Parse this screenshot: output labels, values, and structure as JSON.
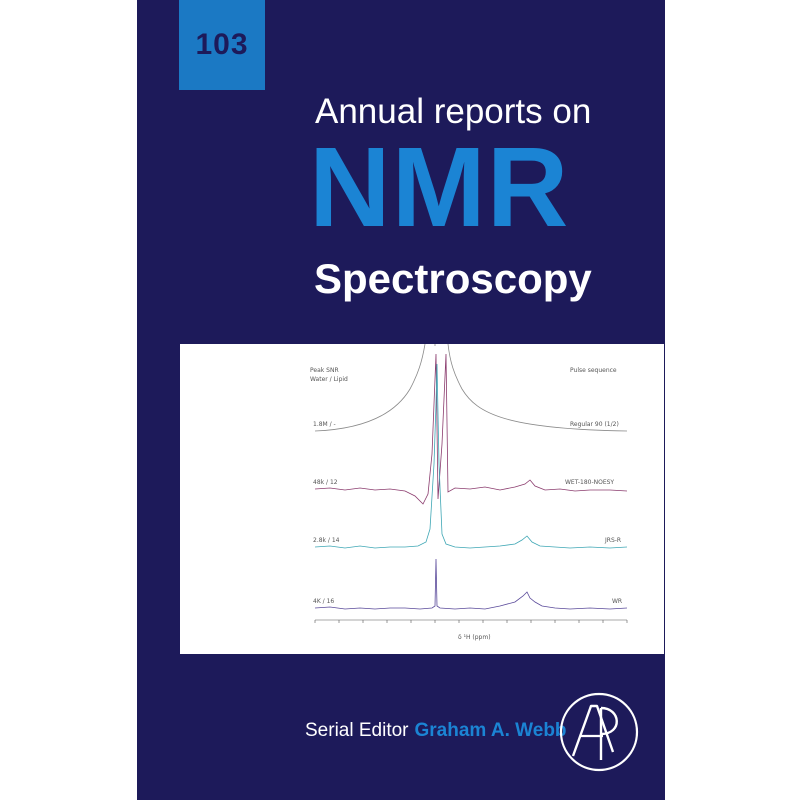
{
  "volume": "103",
  "title": {
    "line1": "Annual reports on",
    "line2": "NMR",
    "line3": "Spectroscopy"
  },
  "figure": {
    "header_left_1": "Peak SNR",
    "header_left_2": "Water / Lipid",
    "header_right": "Pulse sequence",
    "traces": [
      {
        "left": "1.8M / -",
        "right": "Regular 90 (1/2)",
        "color": "#8a8a8a"
      },
      {
        "left": "48k / 12",
        "right": "WET-180-NOESY",
        "color": "#8b3c6e"
      },
      {
        "left": "2.8k / 14",
        "right": "JRS-R",
        "color": "#3fa7b5"
      },
      {
        "left": "4K / 16",
        "right": "WR",
        "color": "#5a4a9a"
      }
    ],
    "axis_label": "δ ¹H (ppm)"
  },
  "editor": {
    "label": "Serial Editor",
    "name": "Graham A. Webb"
  },
  "logo_icon": "ap-publisher-logo",
  "colors": {
    "cover": "#1d1a5a",
    "accent": "#1b84d4",
    "volume_box": "#1b79c4"
  }
}
